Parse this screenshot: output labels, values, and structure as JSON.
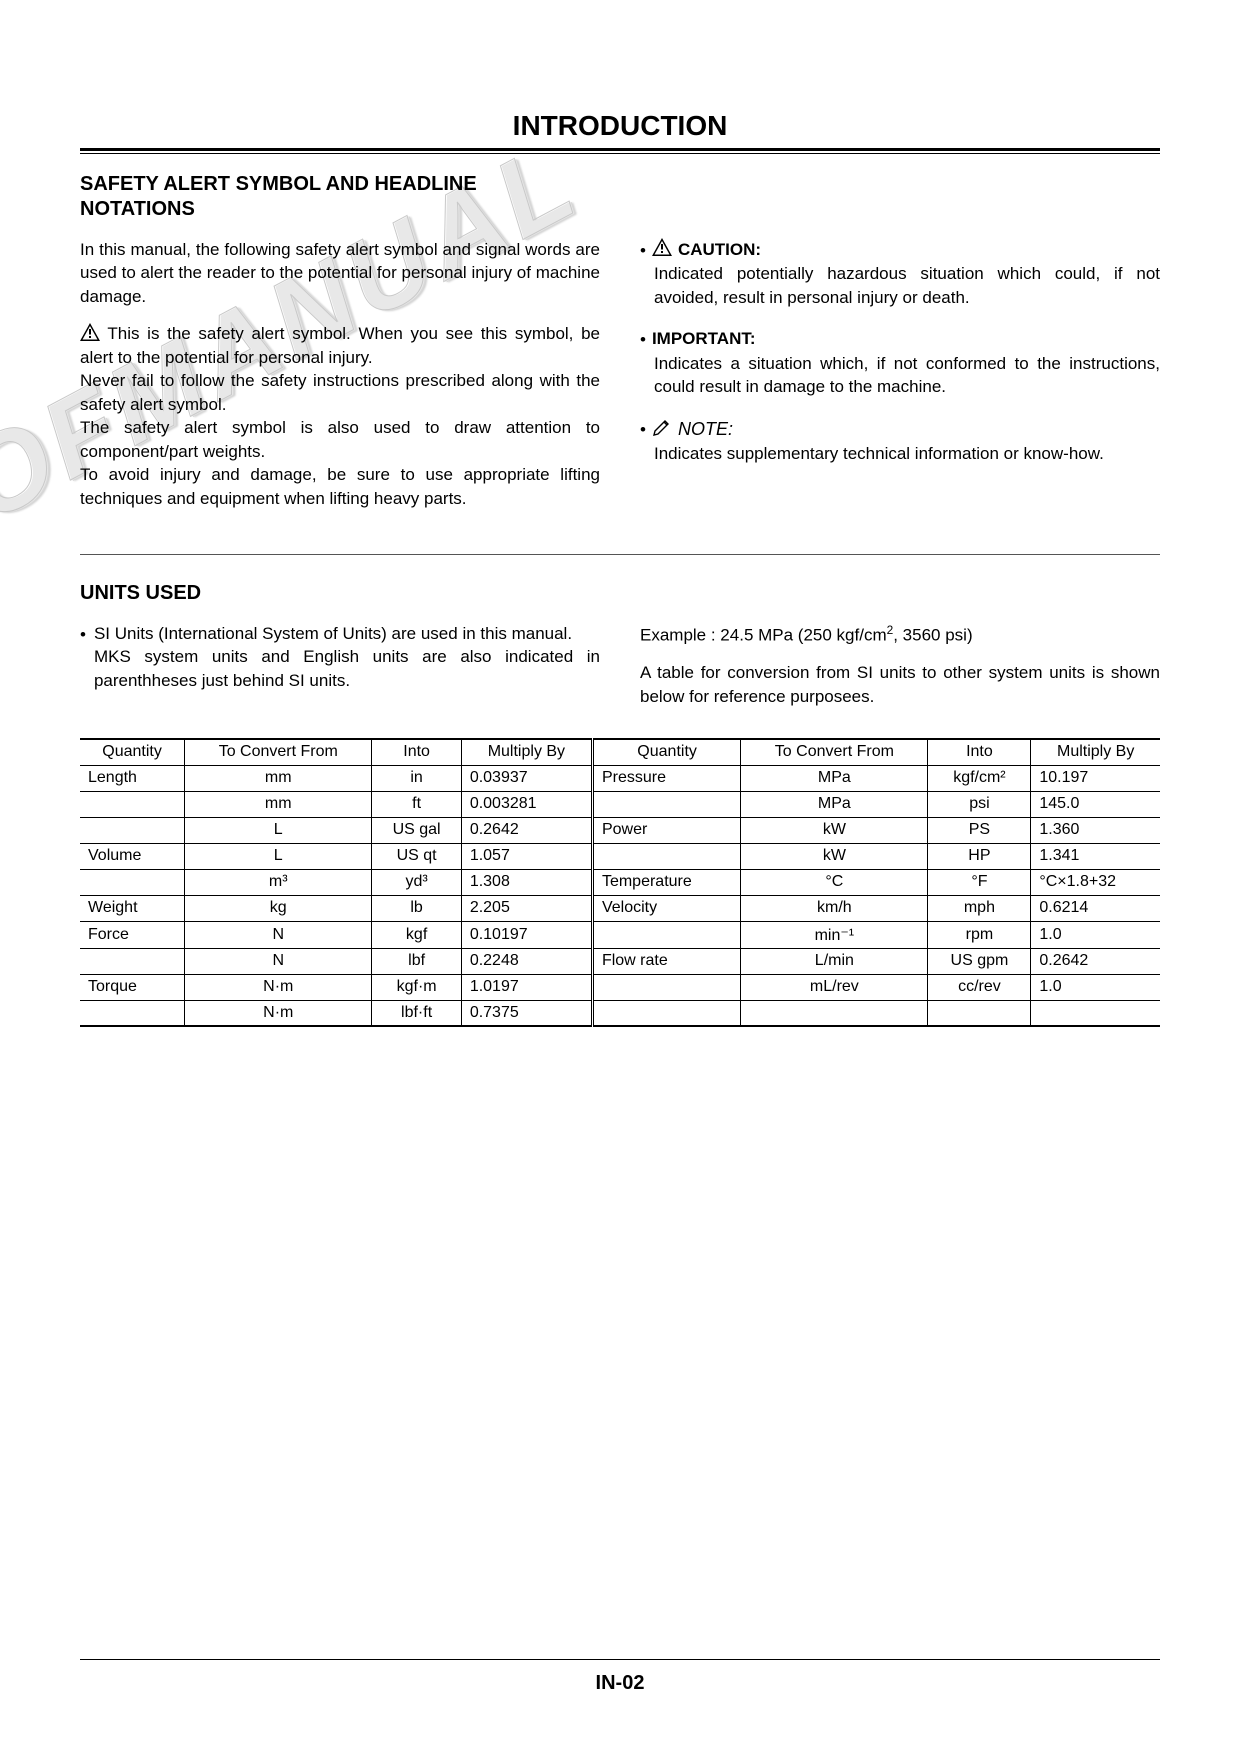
{
  "page_title": "INTRODUCTION",
  "section1_heading_l1": "SAFETY ALERT SYMBOL AND HEADLINE",
  "section1_heading_l2": "NOTATIONS",
  "left": {
    "p1": "In this manual, the following safety alert symbol and signal words are used to alert the reader to the potential for personal injury of machine damage.",
    "p2a": " This is the safety alert symbol. When you see this symbol, be alert to the potential for personal injury.",
    "p2b": "Never fail to follow the safety instructions prescribed along with the safety alert symbol.",
    "p2c": "The safety alert symbol is also used to draw attention to component/part weights.",
    "p2d": "To avoid injury and damage, be sure to use appropriate lifting techniques and equipment when lifting heavy parts."
  },
  "right": {
    "caution_label": " CAUTION:",
    "caution_body": "Indicated potentially hazardous situation which could, if not avoided, result in personal injury or death.",
    "important_label": "IMPORTANT:",
    "important_body": "Indicates a situation which, if not conformed to the instructions, could result in damage to the machine.",
    "note_label": " NOTE:",
    "note_body": "Indicates supplementary technical information or know-how."
  },
  "section2_heading": "UNITS USED",
  "units_left_p1": "SI Units (International System of Units) are used in this manual.",
  "units_left_p2": "MKS system units and English units are also indicated in parenthheses just behind SI units.",
  "units_right_p1_pre": "Example : 24.5 MPa (250 kgf/cm",
  "units_right_p1_post": ", 3560 psi)",
  "units_right_p2": "A table for conversion from SI units to other system units is shown below for reference purposees.",
  "table": {
    "headers": [
      "Quantity",
      "To Convert From",
      "Into",
      "Multiply By",
      "Quantity",
      "To Convert From",
      "Into",
      "Multiply By"
    ],
    "rows": [
      [
        "Length",
        "mm",
        "in",
        "0.03937",
        "Pressure",
        "MPa",
        "kgf/cm²",
        "10.197"
      ],
      [
        "",
        "mm",
        "ft",
        "0.003281",
        "",
        "MPa",
        "psi",
        "145.0"
      ],
      [
        "",
        "L",
        "US gal",
        "0.2642",
        "Power",
        "kW",
        "PS",
        "1.360"
      ],
      [
        "Volume",
        "L",
        "US qt",
        "1.057",
        "",
        "kW",
        "HP",
        "1.341"
      ],
      [
        "",
        "m³",
        "yd³",
        "1.308",
        "Temperature",
        "°C",
        "°F",
        "°C×1.8+32"
      ],
      [
        "Weight",
        "kg",
        "lb",
        "2.205",
        "Velocity",
        "km/h",
        "mph",
        "0.6214"
      ],
      [
        "Force",
        "N",
        "kgf",
        "0.10197",
        "",
        "min⁻¹",
        "rpm",
        "1.0"
      ],
      [
        "",
        "N",
        "lbf",
        "0.2248",
        "Flow rate",
        "L/min",
        "US gpm",
        "0.2642"
      ],
      [
        "Torque",
        "N·m",
        "kgf·m",
        "1.0197",
        "",
        "mL/rev",
        "cc/rev",
        "1.0"
      ],
      [
        "",
        "N·m",
        "lbf·ft",
        "0.7375",
        "",
        "",
        "",
        ""
      ]
    ]
  },
  "footer": "IN-02",
  "watermark": "OFMANUAL",
  "colors": {
    "text": "#000000",
    "bg": "#ffffff",
    "rule": "#000000",
    "watermark_stroke": "#c9c9c9"
  }
}
